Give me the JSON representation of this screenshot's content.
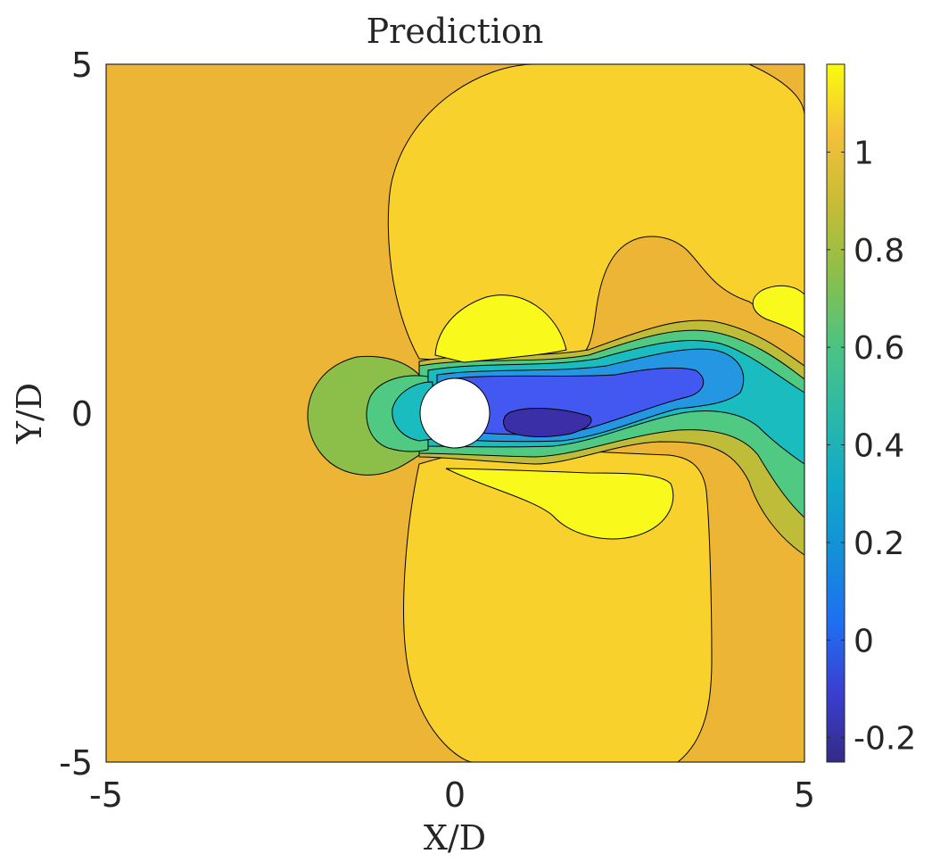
{
  "chart_data": {
    "type": "heatmap",
    "subtype": "filled-contour",
    "title": "Prediction",
    "xlabel": "X/D",
    "ylabel": "Y/D",
    "xlim": [
      -5,
      5
    ],
    "ylim": [
      -5,
      5
    ],
    "x_ticks": [
      "-5",
      "0",
      "5"
    ],
    "y_ticks": [
      "5",
      "0",
      "-5"
    ],
    "colorbar": {
      "range": [
        -0.25,
        1.18
      ],
      "ticks": [
        "1",
        "0.8",
        "0.6",
        "0.4",
        "0.2",
        "0",
        "-0.2"
      ],
      "tick_values": [
        1,
        0.8,
        0.6,
        0.4,
        0.2,
        0,
        -0.2
      ],
      "colormap": "parula"
    },
    "obstacle": {
      "shape": "circle",
      "center": [
        0,
        0
      ],
      "diameter": 1
    },
    "regions": [
      {
        "level": 0.95,
        "description": "freestream background"
      },
      {
        "level": 1.05,
        "description": "upper acceleration lobe"
      },
      {
        "level": 1.05,
        "description": "lower acceleration lobe"
      },
      {
        "level": 1.15,
        "description": "upper near-cylinder peak"
      },
      {
        "level": 1.15,
        "description": "lower near-cylinder peak"
      },
      {
        "level": 0.75,
        "description": "stagnation region upstream"
      },
      {
        "level": -0.2,
        "description": "recirculation core in wake"
      }
    ]
  },
  "colors": {
    "c_m02": "#3b2fa8",
    "c_0": "#4358f0",
    "c_01": "#3580f5",
    "c_02": "#2496e2",
    "c_03": "#16acd8",
    "c_04": "#1bbcbf",
    "c_05": "#2fc59a",
    "c_06": "#50ca82",
    "c_07": "#8cbf4a",
    "c_08": "#bebc38",
    "c_09": "#edb535",
    "c_10": "#f8d12c",
    "c_11": "#f9f91b"
  }
}
